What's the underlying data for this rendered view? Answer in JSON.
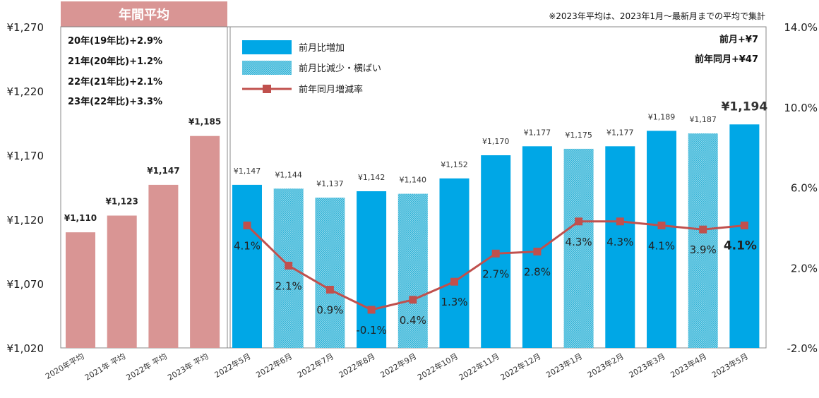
{
  "header": {
    "panel_title": "年間平均",
    "note": "※2023年平均は、2023年1月～最新月までの平均で集計"
  },
  "annual_summary": [
    "20年(19年比)+2.9%",
    "21年(20年比)+1.2%",
    "22年(21年比)+2.1%",
    "23年(22年比)+3.3%"
  ],
  "corner_notes": [
    "前月+¥7",
    "前年同月+¥47"
  ],
  "legend": {
    "increase": "前月比増加",
    "decrease": "前月比減少・横ばい",
    "yoy": "前年同月増減率"
  },
  "colors": {
    "annual": "#d99594",
    "increase": "#00a7e6",
    "decrease": "#5bc3dd",
    "line": "#c0504d"
  },
  "chart_data": {
    "type": "bar",
    "y_left_ticks": [
      "¥1,270",
      "¥1,220",
      "¥1,170",
      "¥1,120",
      "¥1,070",
      "¥1,020"
    ],
    "y_right_ticks": [
      "14.0%",
      "10.0%",
      "6.0%",
      "2.0%",
      "-2.0%"
    ],
    "ylim": [
      1020,
      1270
    ],
    "y2lim": [
      -2.0,
      14.0
    ],
    "categories": [
      "2020年平均",
      "2021年 平均",
      "2022年 平均",
      "2023年 平均",
      "2022年5月",
      "2022年6月",
      "2022年7月",
      "2022年8月",
      "2022年9月",
      "2022年10月",
      "2022年11月",
      "2022年12月",
      "2023年1月",
      "2023年2月",
      "2023年3月",
      "2023年4月",
      "2023年5月"
    ],
    "values": [
      1110,
      1123,
      1147,
      1185,
      1147,
      1144,
      1137,
      1142,
      1140,
      1152,
      1170,
      1177,
      1175,
      1177,
      1189,
      1187,
      1194
    ],
    "value_labels": [
      "¥1,110",
      "¥1,123",
      "¥1,147",
      "¥1,185",
      "¥1,147",
      "¥1,144",
      "¥1,137",
      "¥1,142",
      "¥1,140",
      "¥1,152",
      "¥1,170",
      "¥1,177",
      "¥1,175",
      "¥1,177",
      "¥1,189",
      "¥1,187",
      "¥1,194"
    ],
    "bar_kind": [
      "annual",
      "annual",
      "annual",
      "annual",
      "increase",
      "decrease",
      "decrease",
      "increase",
      "decrease",
      "increase",
      "increase",
      "increase",
      "decrease",
      "increase",
      "increase",
      "decrease",
      "increase"
    ],
    "yoy_pct": [
      4.1,
      2.1,
      0.9,
      -0.1,
      0.4,
      1.3,
      2.7,
      2.8,
      4.3,
      4.3,
      4.1,
      3.9,
      4.1
    ],
    "yoy_labels": [
      "4.1%",
      "2.1%",
      "0.9%",
      "-0.1%",
      "0.4%",
      "1.3%",
      "2.7%",
      "2.8%",
      "4.3%",
      "4.3%",
      "4.1%",
      "3.9%",
      "4.1%"
    ]
  }
}
